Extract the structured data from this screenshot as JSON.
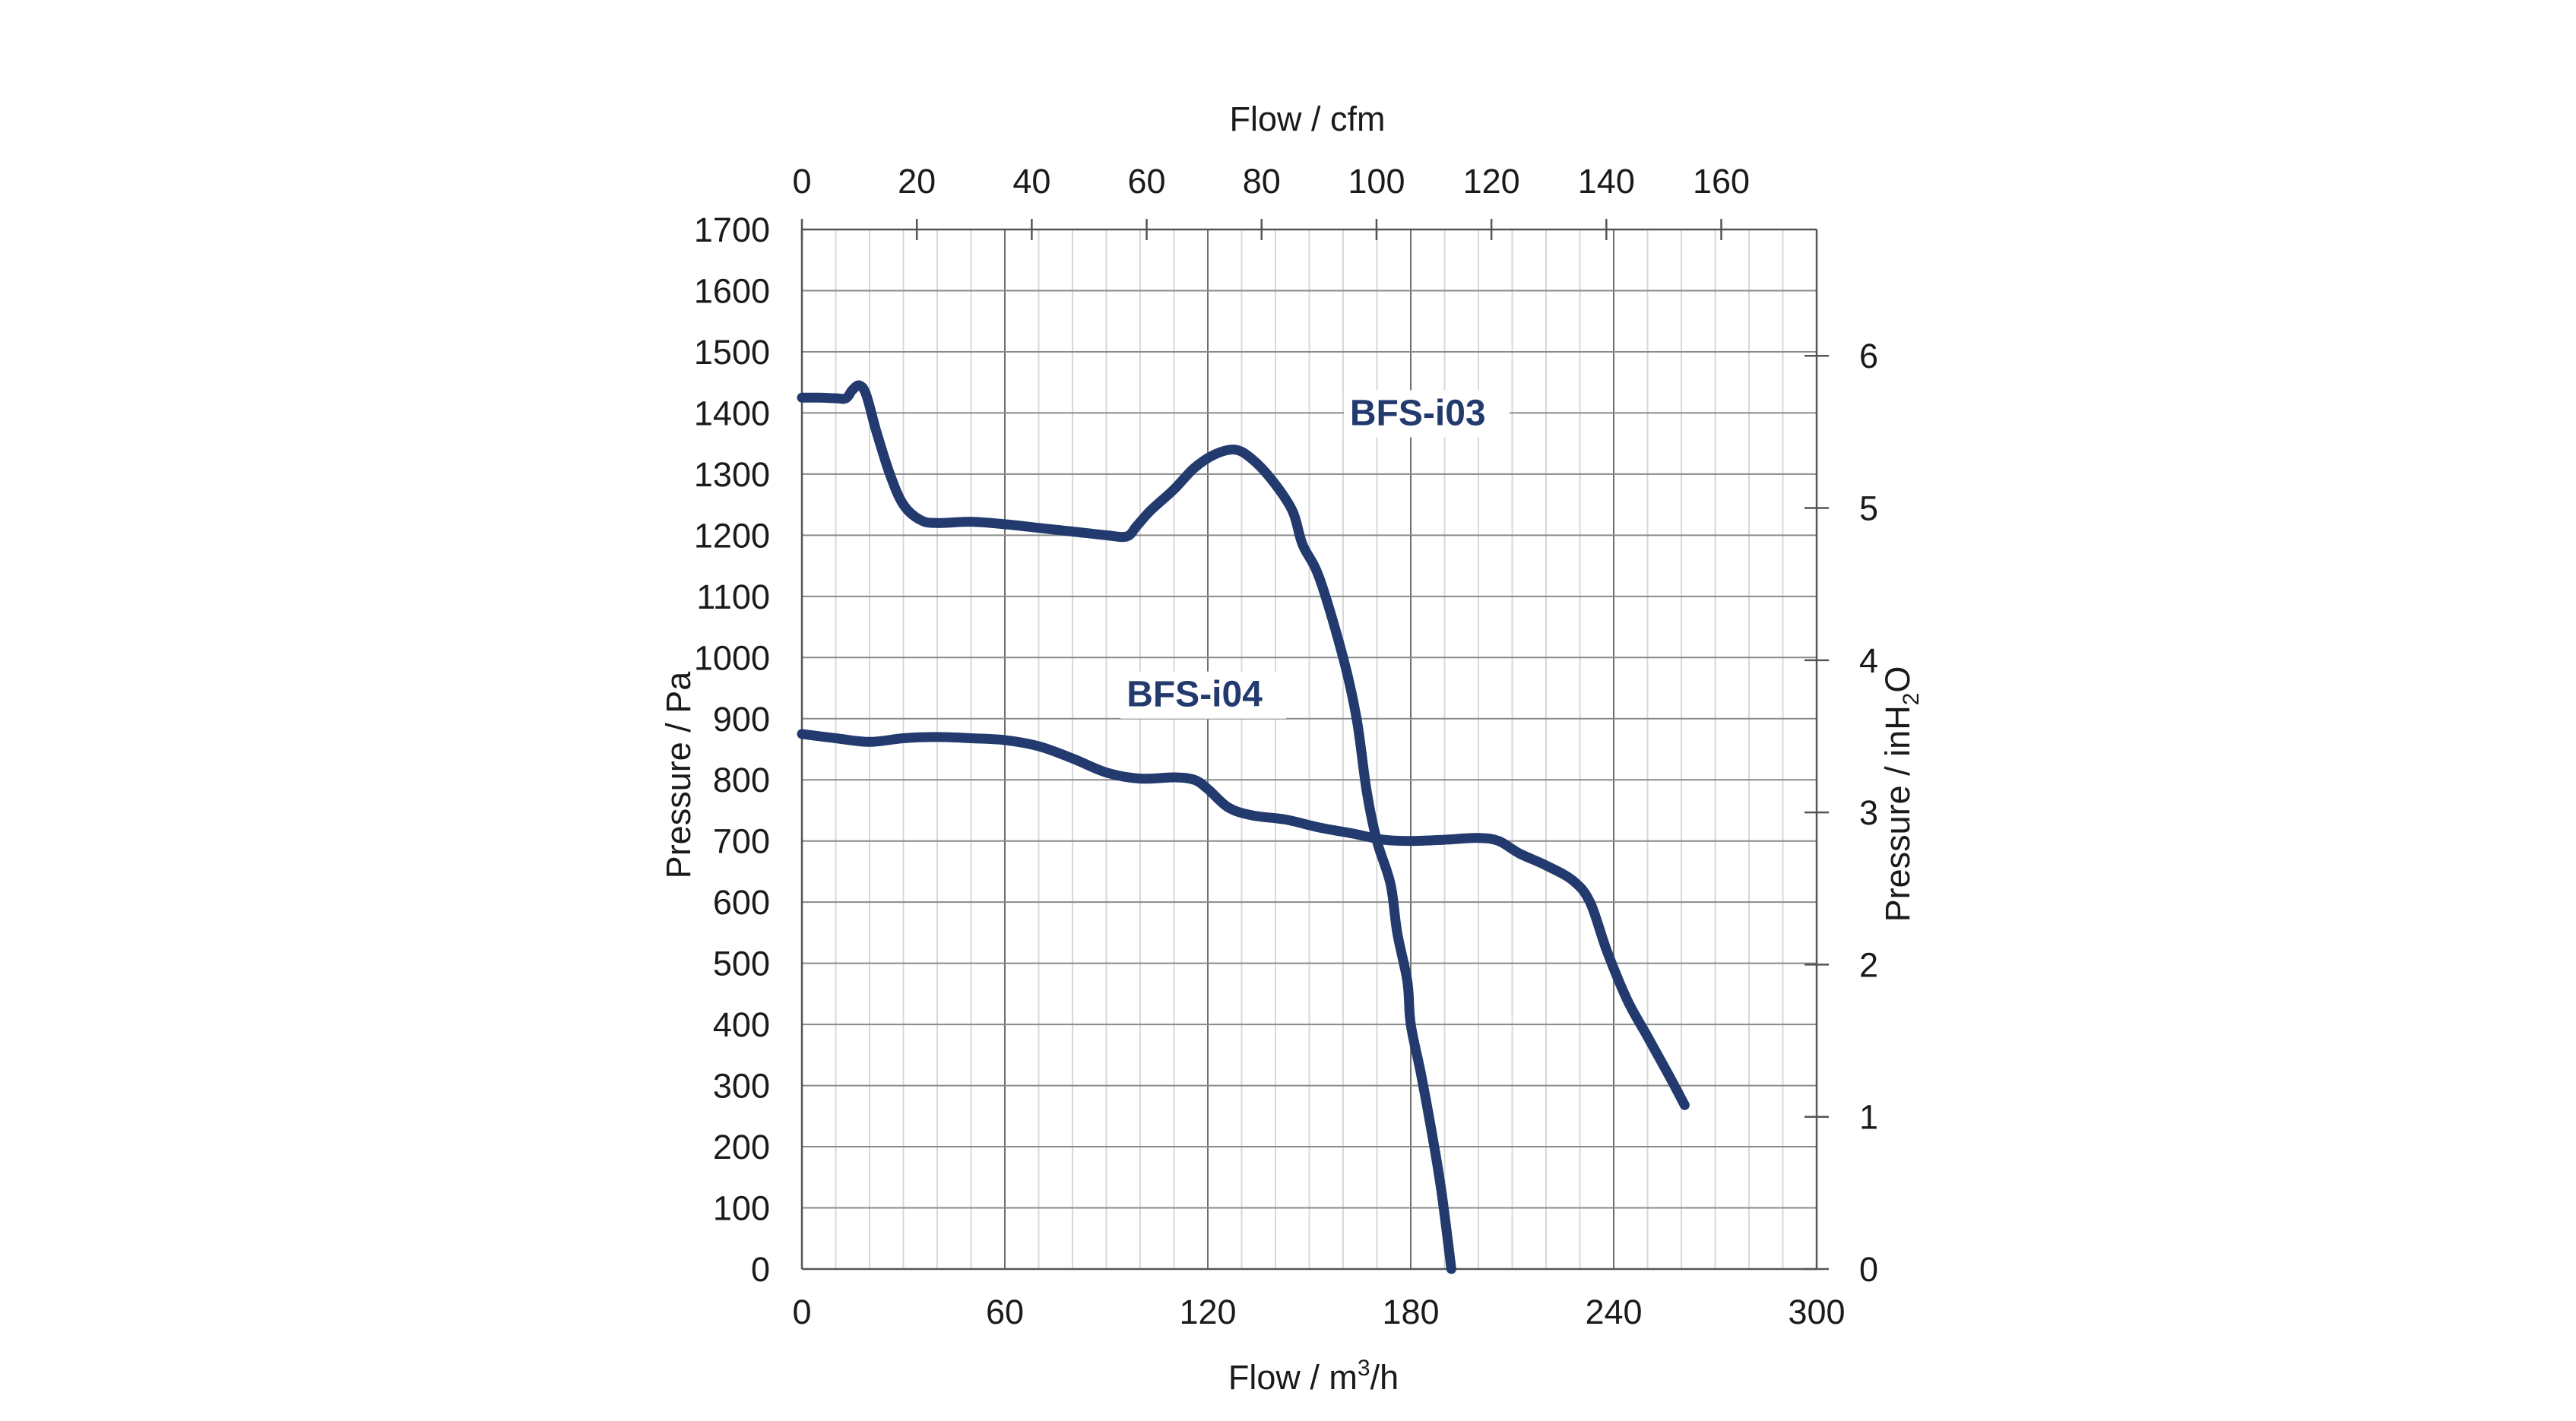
{
  "chart_data": {
    "type": "line",
    "colors": {
      "series": "#223a6e",
      "grid_major": "#6e6e6e",
      "grid_minor": "#d8d8d8"
    },
    "grid": true,
    "x_bottom": {
      "label_text": "Flow / m",
      "label_sup": "3",
      "label_tail": "/h",
      "range": [
        0,
        300
      ],
      "ticks": [
        0,
        60,
        120,
        180,
        240,
        300
      ],
      "minor_step": 10
    },
    "x_top": {
      "label": "Flow / cfm",
      "range": [
        0,
        176.6
      ],
      "ticks": [
        0,
        20,
        40,
        60,
        80,
        100,
        120,
        140,
        160
      ]
    },
    "y_left": {
      "label": "Pressure / Pa",
      "range": [
        0,
        1700
      ],
      "ticks": [
        0,
        100,
        200,
        300,
        400,
        500,
        600,
        700,
        800,
        900,
        1000,
        1100,
        1200,
        1300,
        1400,
        1500,
        1600,
        1700
      ]
    },
    "y_right": {
      "label_text": "Pressure / inH",
      "label_sub": "2",
      "label_tail": "O",
      "range": [
        0,
        6.83
      ],
      "ticks": [
        0,
        1,
        2,
        3,
        4,
        5,
        6
      ]
    },
    "series": [
      {
        "name": "BFS-i03",
        "label_anchor": [
          162,
          1380
        ],
        "points": [
          [
            0,
            1425
          ],
          [
            5,
            1425
          ],
          [
            10,
            1424
          ],
          [
            13,
            1424
          ],
          [
            15,
            1438
          ],
          [
            17,
            1445
          ],
          [
            19,
            1430
          ],
          [
            22,
            1370
          ],
          [
            26,
            1300
          ],
          [
            30,
            1250
          ],
          [
            35,
            1225
          ],
          [
            40,
            1220
          ],
          [
            50,
            1222
          ],
          [
            60,
            1218
          ],
          [
            70,
            1212
          ],
          [
            80,
            1206
          ],
          [
            90,
            1200
          ],
          [
            96,
            1198
          ],
          [
            99,
            1215
          ],
          [
            103,
            1240
          ],
          [
            110,
            1275
          ],
          [
            116,
            1310
          ],
          [
            122,
            1332
          ],
          [
            128,
            1340
          ],
          [
            133,
            1325
          ],
          [
            139,
            1290
          ],
          [
            145,
            1240
          ],
          [
            148,
            1185
          ],
          [
            153,
            1130
          ],
          [
            160,
            1000
          ],
          [
            164,
            900
          ],
          [
            167,
            780
          ],
          [
            170,
            700
          ],
          [
            174,
            630
          ],
          [
            176,
            550
          ],
          [
            179,
            470
          ],
          [
            180,
            400
          ],
          [
            183,
            320
          ],
          [
            186,
            230
          ],
          [
            189,
            130
          ],
          [
            192,
            0
          ]
        ]
      },
      {
        "name": "BFS-i04",
        "label_anchor": [
          96,
          920
        ],
        "points": [
          [
            0,
            875
          ],
          [
            10,
            868
          ],
          [
            20,
            862
          ],
          [
            30,
            868
          ],
          [
            40,
            870
          ],
          [
            50,
            868
          ],
          [
            60,
            865
          ],
          [
            70,
            855
          ],
          [
            80,
            835
          ],
          [
            90,
            812
          ],
          [
            100,
            802
          ],
          [
            110,
            804
          ],
          [
            116,
            800
          ],
          [
            120,
            785
          ],
          [
            126,
            755
          ],
          [
            133,
            742
          ],
          [
            143,
            735
          ],
          [
            153,
            722
          ],
          [
            163,
            712
          ],
          [
            172,
            702
          ],
          [
            180,
            700
          ],
          [
            190,
            702
          ],
          [
            200,
            705
          ],
          [
            206,
            700
          ],
          [
            212,
            680
          ],
          [
            220,
            660
          ],
          [
            228,
            635
          ],
          [
            233,
            600
          ],
          [
            238,
            520
          ],
          [
            244,
            440
          ],
          [
            250,
            380
          ],
          [
            256,
            320
          ],
          [
            261,
            268
          ]
        ]
      }
    ]
  }
}
